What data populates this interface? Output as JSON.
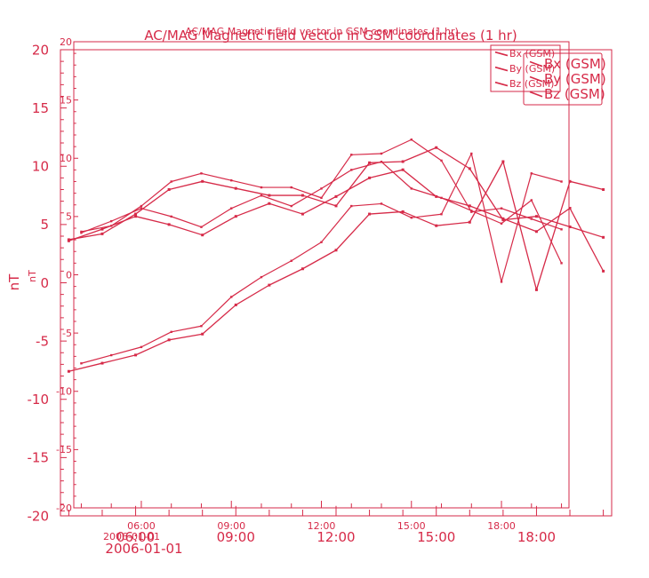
{
  "colors": {
    "accent": "#d62a48"
  },
  "chart_data": {
    "type": "line",
    "title": "AC/MAG  Magnetic field vector in GSM coordinates (1 hr)",
    "ylabel": "nT",
    "xlabel_date": "2006-01-01",
    "ylim": [
      -20,
      20
    ],
    "y_ticks": [
      -20,
      -15,
      -10,
      -5,
      0,
      5,
      10,
      15,
      20
    ],
    "x_ticks": [
      "06:00",
      "09:00",
      "12:00",
      "15:00",
      "18:00"
    ],
    "xlim_hours": [
      3.75,
      20.25
    ],
    "legend": [
      "Bx (GSM)",
      "By (GSM)",
      "Bz (GSM)"
    ],
    "legend_placement": "top-right",
    "x_hours": [
      4,
      5,
      6,
      7,
      8,
      9,
      10,
      11,
      12,
      13,
      14,
      15,
      16,
      17,
      18,
      19,
      20
    ],
    "series": [
      {
        "name": "Bx (GSM)",
        "values": [
          3.7,
          4.2,
          5.9,
          8.0,
          8.7,
          8.1,
          7.5,
          7.5,
          6.6,
          10.3,
          10.4,
          11.6,
          9.8,
          5.4,
          5.7,
          4.8,
          3.9
        ]
      },
      {
        "name": "By (GSM)",
        "values": [
          3.6,
          4.6,
          5.7,
          5.0,
          4.1,
          5.7,
          6.8,
          5.9,
          7.4,
          9.0,
          9.7,
          7.4,
          6.6,
          5.5,
          4.4,
          6.4,
          1.0
        ]
      },
      {
        "name": "Bz (GSM)",
        "values": [
          -7.6,
          -6.9,
          -6.2,
          -4.9,
          -4.4,
          -1.9,
          -0.2,
          1.2,
          2.8,
          5.9,
          6.1,
          4.9,
          5.2,
          10.4,
          -0.6,
          8.7,
          8.0
        ]
      }
    ]
  }
}
